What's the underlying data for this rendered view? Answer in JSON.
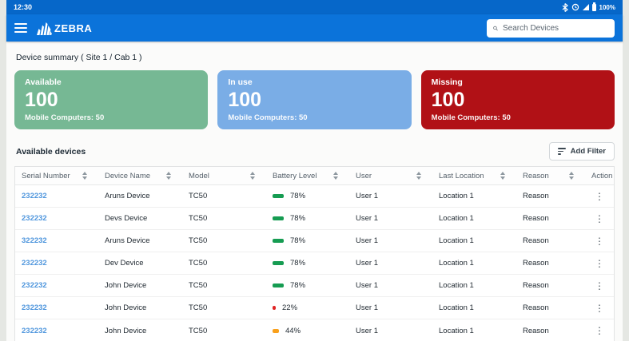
{
  "status_bar": {
    "time": "12:30",
    "battery_pct_label": "100%"
  },
  "header": {
    "brand": "ZEBRA",
    "search_placeholder": "Search Devices"
  },
  "summary": {
    "title": "Device summary ( Site 1 / Cab 1 )",
    "cards": [
      {
        "label": "Available",
        "count": "100",
        "sub": "Mobile Computers: 50",
        "color": "#76b894"
      },
      {
        "label": "In use",
        "count": "100",
        "sub": "Mobile Computers: 50",
        "color": "#7aade6"
      },
      {
        "label": "Missing",
        "count": "100",
        "sub": "Mobile Computers: 50",
        "color": "#b11116"
      }
    ]
  },
  "devices": {
    "title": "Available devices",
    "add_filter_label": "Add Filter",
    "columns": [
      "Serial Number",
      "Device Name",
      "Model",
      "Battery Level",
      "User",
      "Last Location",
      "Reason",
      "Action"
    ],
    "rows": [
      {
        "serial": "232232",
        "name": "Aruns Device",
        "model": "TC50",
        "battery_pct": 78,
        "battery_label": "78%",
        "battery_color": "#169c52",
        "user": "User 1",
        "location": "Location 1",
        "reason": "Reason"
      },
      {
        "serial": "232232",
        "name": "Devs Device",
        "model": "TC50",
        "battery_pct": 78,
        "battery_label": "78%",
        "battery_color": "#169c52",
        "user": "User 1",
        "location": "Location 1",
        "reason": "Reason"
      },
      {
        "serial": "322232",
        "name": "Aruns Device",
        "model": "TC50",
        "battery_pct": 78,
        "battery_label": "78%",
        "battery_color": "#169c52",
        "user": "User 1",
        "location": "Location 1",
        "reason": "Reason"
      },
      {
        "serial": "232232",
        "name": "Dev Device",
        "model": "TC50",
        "battery_pct": 78,
        "battery_label": "78%",
        "battery_color": "#169c52",
        "user": "User 1",
        "location": "Location 1",
        "reason": "Reason"
      },
      {
        "serial": "232232",
        "name": "John Device",
        "model": "TC50",
        "battery_pct": 78,
        "battery_label": "78%",
        "battery_color": "#169c52",
        "user": "User 1",
        "location": "Location 1",
        "reason": "Reason"
      },
      {
        "serial": "232232",
        "name": "John Device",
        "model": "TC50",
        "battery_pct": 22,
        "battery_label": "22%",
        "battery_color": "#e02424",
        "user": "User 1",
        "location": "Location 1",
        "reason": "Reason"
      },
      {
        "serial": "232232",
        "name": "John Device",
        "model": "TC50",
        "battery_pct": 44,
        "battery_label": "44%",
        "battery_color": "#f9a01b",
        "user": "User 1",
        "location": "Location 1",
        "reason": "Reason"
      }
    ]
  }
}
